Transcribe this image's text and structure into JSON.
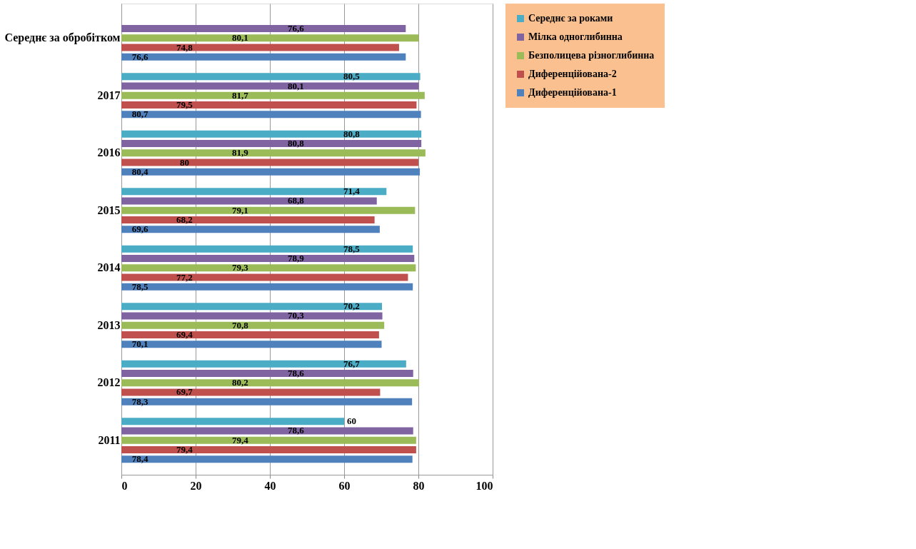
{
  "chart_data": {
    "type": "bar",
    "orientation": "horizontal",
    "categories": [
      "Середнє за обробітком",
      "2017",
      "2016",
      "2015",
      "2014",
      "2013",
      "2012",
      "2011"
    ],
    "series": [
      {
        "name": "Середнє за роками",
        "color": "#4bacc6",
        "values": [
          null,
          80.5,
          80.8,
          71.4,
          78.5,
          70.2,
          76.7,
          60
        ],
        "value_labels": [
          null,
          "80,5",
          "80,8",
          "71,4",
          "78,5",
          "70,2",
          "76,7",
          "60"
        ]
      },
      {
        "name": "Мілка одноглибинна",
        "color": "#8064a2",
        "values": [
          76.6,
          80.1,
          80.8,
          68.8,
          78.9,
          70.3,
          78.6,
          78.6
        ],
        "value_labels": [
          "76,6",
          "80,1",
          "80,8",
          "68,8",
          "78,9",
          "70,3",
          "78,6",
          "78,6"
        ]
      },
      {
        "name": "Безполицева різноглибинна",
        "color": "#9bbb59",
        "values": [
          80.1,
          81.7,
          81.9,
          79.1,
          79.3,
          70.8,
          80.2,
          79.4
        ],
        "value_labels": [
          "80,1",
          "81,7",
          "81,9",
          "79,1",
          "79,3",
          "70,8",
          "80,2",
          "79,4"
        ]
      },
      {
        "name": "Диференційована-2",
        "color": "#c0504d",
        "values": [
          74.8,
          79.5,
          80,
          68.2,
          77.2,
          69.4,
          69.7,
          79.4
        ],
        "value_labels": [
          "74,8",
          "79,5",
          "80",
          "68,2",
          "77,2",
          "69,4",
          "69,7",
          "79,4"
        ]
      },
      {
        "name": "Диференційована-1",
        "color": "#4f81bd",
        "values": [
          76.6,
          80.7,
          80.4,
          69.6,
          78.5,
          70.1,
          78.3,
          78.4
        ],
        "value_labels": [
          "76,6",
          "80,7",
          "80,4",
          "69,6",
          "78,5",
          "70,1",
          "78,3",
          "78,4"
        ]
      }
    ],
    "xlim": [
      0,
      100
    ],
    "xticks": [
      0,
      20,
      40,
      60,
      80,
      100
    ],
    "grid": "x",
    "legend": "right"
  }
}
